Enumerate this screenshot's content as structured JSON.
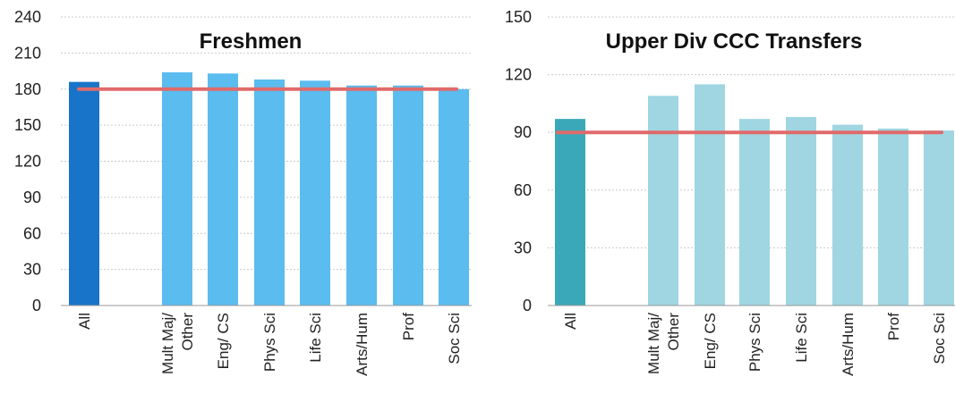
{
  "chart_data": [
    {
      "type": "bar",
      "title": "Freshmen",
      "categories": [
        "All",
        "Mult Maj/ Other",
        "Eng/ CS",
        "Phys Sci",
        "Life Sci",
        "Arts/Hum",
        "Prof",
        "Soc Sci"
      ],
      "category_lines": [
        [
          "All"
        ],
        [
          "Mult Maj/",
          "Other"
        ],
        [
          "Eng/ CS"
        ],
        [
          "Phys Sci"
        ],
        [
          "Life Sci"
        ],
        [
          "Arts/Hum"
        ],
        [
          "Prof"
        ],
        [
          "Soc Sci"
        ]
      ],
      "values": [
        186,
        194,
        193,
        188,
        187,
        183,
        183,
        180
      ],
      "reference_line": 180,
      "ylim": [
        0,
        240
      ],
      "yticks": [
        0,
        30,
        60,
        90,
        120,
        150,
        180,
        210,
        240
      ],
      "grid": true,
      "colors": {
        "highlight": "#1874c8",
        "bar": "#5bbcef",
        "reference_line": "#e06a6a"
      }
    },
    {
      "type": "bar",
      "title": "Upper Div CCC Transfers",
      "categories": [
        "All",
        "Mult Maj/ Other",
        "Eng/ CS",
        "Phys Sci",
        "Life Sci",
        "Arts/Hum",
        "Prof",
        "Soc Sci"
      ],
      "category_lines": [
        [
          "All"
        ],
        [
          "Mult Maj/",
          "Other"
        ],
        [
          "Eng/ CS"
        ],
        [
          "Phys Sci"
        ],
        [
          "Life Sci"
        ],
        [
          "Arts/Hum"
        ],
        [
          "Prof"
        ],
        [
          "Soc Sci"
        ]
      ],
      "values": [
        97,
        109,
        115,
        97,
        98,
        94,
        92,
        91
      ],
      "reference_line": 90,
      "ylim": [
        0,
        150
      ],
      "yticks": [
        0,
        30,
        60,
        90,
        120,
        150
      ],
      "grid": true,
      "colors": {
        "highlight": "#3aa8b8",
        "bar": "#9fd6e2",
        "reference_line": "#e06a6a"
      }
    }
  ]
}
